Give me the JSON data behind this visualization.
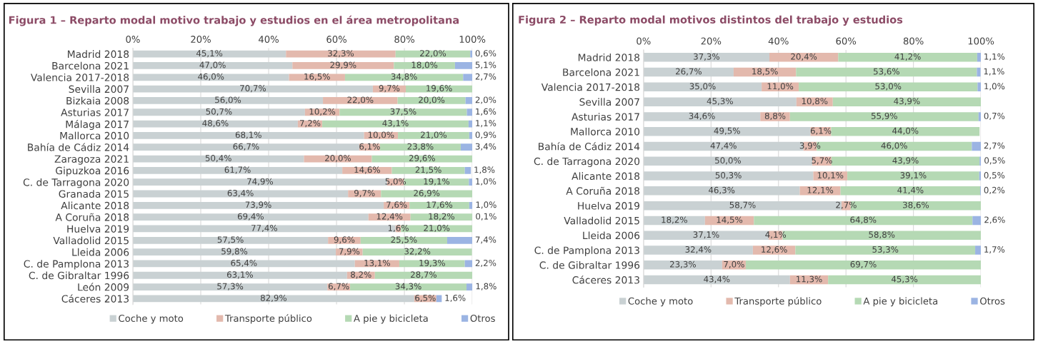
{
  "chart_data": [
    {
      "type": "bar",
      "orientation": "horizontal",
      "stacked": true,
      "title": "Figura 1 – Reparto modal motivo trabajo y estudios en el área metropolitana",
      "categories": [
        "Madrid 2018",
        "Barcelona 2021",
        "Valencia 2017-2018",
        "Sevilla 2007",
        "Bizkaia 2008",
        "Asturias 2017",
        "Málaga 2017",
        "Mallorca 2010",
        "Bahía de Cádiz 2014",
        "Zaragoza 2021",
        "Gipuzkoa 2016",
        "C. de Tarragona 2020",
        "Granada 2015",
        "Alicante 2018",
        "A Coruña 2018",
        "Huelva 2019",
        "Valladolid 2015",
        "Lleida 2006",
        "C. de Pamplona 2013",
        "C. de Gibraltar 1996",
        "León 2009",
        "Cáceres 2013"
      ],
      "xlim": [
        0,
        100
      ],
      "xticks": [
        {
          "value": 0,
          "label": "0%"
        },
        {
          "value": 20,
          "label": "20%"
        },
        {
          "value": 40,
          "label": "40%"
        },
        {
          "value": 60,
          "label": "60%"
        },
        {
          "value": 80,
          "label": "80%"
        },
        {
          "value": 100,
          "label": "100%"
        }
      ],
      "grid": "x",
      "legend": "bottom",
      "series": [
        {
          "name": "Coche y moto",
          "color": "#c9d1d3",
          "values": [
            45.1,
            47.0,
            46.0,
            70.7,
            56.0,
            50.7,
            48.6,
            68.1,
            66.7,
            50.4,
            61.7,
            74.9,
            63.4,
            73.9,
            69.4,
            77.4,
            57.5,
            59.8,
            65.4,
            63.1,
            57.3,
            82.9
          ],
          "value_labels": [
            "45,1%",
            "47,0%",
            "46,0%",
            "70,7%",
            "56,0%",
            "50,7%",
            "48,6%",
            "68,1%",
            "66,7%",
            "50,4%",
            "61,7%",
            "74,9%",
            "63,4%",
            "73,9%",
            "69,4%",
            "77,4%",
            "57,5%",
            "59,8%",
            "65,4%",
            "63,1%",
            "57,3%",
            "82,9%"
          ]
        },
        {
          "name": "Transporte público",
          "color": "#e3b9ad",
          "values": [
            32.3,
            29.9,
            16.5,
            9.7,
            22.0,
            10.2,
            7.2,
            10.0,
            6.1,
            20.0,
            14.6,
            5.0,
            9.7,
            7.6,
            12.4,
            1.6,
            9.6,
            7.9,
            13.1,
            8.2,
            6.7,
            6.5
          ],
          "value_labels": [
            "32,3%",
            "29,9%",
            "16,5%",
            "9,7%",
            "22,0%",
            "10,2%",
            "7,2%",
            "10,0%",
            "6,1%",
            "20,0%",
            "14,6%",
            "5,0%",
            "9,7%",
            "7,6%",
            "12,4%",
            "1,6%",
            "9,6%",
            "7,9%",
            "13,1%",
            "8,2%",
            "6,7%",
            "6,5%"
          ]
        },
        {
          "name": "A pie y bicicleta",
          "color": "#b5d9b4",
          "values": [
            22.0,
            18.0,
            34.8,
            19.6,
            20.0,
            37.5,
            43.1,
            21.0,
            23.8,
            29.6,
            21.5,
            19.1,
            26.9,
            17.6,
            18.2,
            21.0,
            25.5,
            32.2,
            19.3,
            28.7,
            34.3,
            null
          ],
          "value_labels": [
            "22,0%",
            "18,0%",
            "34,8%",
            "19,6%",
            "20,0%",
            "37,5%",
            "43,1%",
            "21,0%",
            "23,8%",
            "29,6%",
            "21,5%",
            "19,1%",
            "26,9%",
            "17,6%",
            "18,2%",
            "21,0%",
            "25,5%",
            "32,2%",
            "19,3%",
            "28,7%",
            "34,3%",
            null
          ]
        },
        {
          "name": "Otros",
          "color": "#9bb4e3",
          "values": [
            0.6,
            5.1,
            2.7,
            null,
            2.0,
            1.6,
            1.1,
            0.9,
            3.4,
            null,
            1.8,
            1.0,
            null,
            1.0,
            0.1,
            null,
            7.4,
            null,
            2.2,
            null,
            1.8,
            1.6
          ],
          "value_labels": [
            "0,6%",
            "5,1%",
            "2,7%",
            null,
            "2,0%",
            "1,6%",
            "1,1%",
            "0,9%",
            "3,4%",
            null,
            "1,8%",
            "1,0%",
            null,
            "1,0%",
            "0,1%",
            null,
            "7,4%",
            null,
            "2,2%",
            null,
            "1,8%",
            "1,6%"
          ]
        }
      ]
    },
    {
      "type": "bar",
      "orientation": "horizontal",
      "stacked": true,
      "title": "Figura 2 – Reparto modal motivos distintos del trabajo y estudios",
      "categories": [
        "Madrid 2018",
        "Barcelona 2021",
        "Valencia 2017-2018",
        "Sevilla 2007",
        "Asturias 2017",
        "Mallorca 2010",
        "Bahía de Cádiz 2014",
        "C. de Tarragona 2020",
        "Alicante 2018",
        "A Coruña 2018",
        "Huelva 2019",
        "Valladolid 2015",
        "Lleida 2006",
        "C. de Pamplona 2013",
        "C. de Gibraltar 1996",
        "Cáceres 2013"
      ],
      "xlim": [
        0,
        100
      ],
      "xticks": [
        {
          "value": 0,
          "label": "0%"
        },
        {
          "value": 20,
          "label": "20%"
        },
        {
          "value": 40,
          "label": "40%"
        },
        {
          "value": 60,
          "label": "60%"
        },
        {
          "value": 80,
          "label": "80%"
        },
        {
          "value": 100,
          "label": "100%"
        }
      ],
      "grid": "x",
      "legend": "bottom",
      "series": [
        {
          "name": "Coche y moto",
          "color": "#c9d1d3",
          "values": [
            37.3,
            26.7,
            35.0,
            45.3,
            34.6,
            49.5,
            47.4,
            50.0,
            50.3,
            46.3,
            58.7,
            18.2,
            37.1,
            32.4,
            23.3,
            43.4
          ],
          "value_labels": [
            "37,3%",
            "26,7%",
            "35,0%",
            "45,3%",
            "34,6%",
            "49,5%",
            "47,4%",
            "50,0%",
            "50,3%",
            "46,3%",
            "58,7%",
            "18,2%",
            "37,1%",
            "32,4%",
            "23,3%",
            "43,4%"
          ]
        },
        {
          "name": "Transporte público",
          "color": "#e3b9ad",
          "values": [
            20.4,
            18.5,
            11.0,
            10.8,
            8.8,
            6.1,
            3.9,
            5.7,
            10.1,
            12.1,
            2.7,
            14.5,
            4.1,
            12.6,
            7.0,
            11.3
          ],
          "value_labels": [
            "20,4%",
            "18,5%",
            "11,0%",
            "10,8%",
            "8,8%",
            "6,1%",
            "3,9%",
            "5,7%",
            "10,1%",
            "12,1%",
            "2,7%",
            "14,5%",
            "4,1%",
            "12,6%",
            "7,0%",
            "11,3%"
          ]
        },
        {
          "name": "A pie y bicicleta",
          "color": "#b5d9b4",
          "values": [
            41.2,
            53.6,
            53.0,
            43.9,
            55.9,
            44.0,
            46.0,
            43.9,
            39.1,
            41.4,
            38.6,
            64.8,
            58.8,
            53.3,
            69.7,
            45.3
          ],
          "value_labels": [
            "41,2%",
            "53,6%",
            "53,0%",
            "43,9%",
            "55,9%",
            "44,0%",
            "46,0%",
            "43,9%",
            "39,1%",
            "41,4%",
            "38,6%",
            "64,8%",
            "58,8%",
            "53,3%",
            "69,7%",
            "45,3%"
          ]
        },
        {
          "name": "Otros",
          "color": "#9bb4e3",
          "values": [
            1.1,
            1.1,
            1.0,
            null,
            0.7,
            null,
            2.7,
            0.5,
            0.5,
            0.2,
            null,
            2.6,
            null,
            1.7,
            null,
            null
          ],
          "value_labels": [
            "1,1%",
            "1,1%",
            "1,0%",
            null,
            "0,7%",
            null,
            "2,7%",
            "0,5%",
            "0,5%",
            "0,2%",
            null,
            "2,6%",
            null,
            "1,7%",
            null,
            null
          ]
        }
      ]
    }
  ]
}
